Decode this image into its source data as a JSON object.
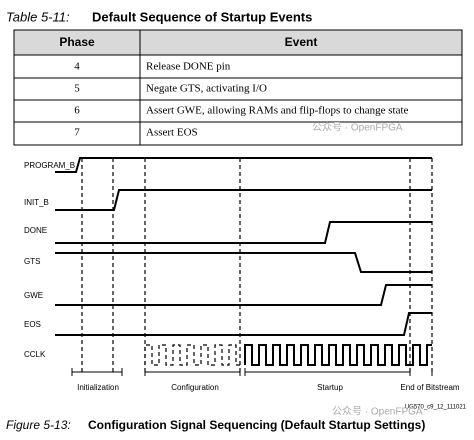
{
  "table": {
    "label": "Table 5-11:",
    "title": "Default Sequence of Startup Events",
    "headers": [
      "Phase",
      "Event"
    ],
    "rows": [
      [
        "4",
        "Release DONE pin"
      ],
      [
        "5",
        "Negate GTS, activating I/O"
      ],
      [
        "6",
        "Assert GWE, allowing RAMs and flip-flops to change state"
      ],
      [
        "7",
        "Assert EOS"
      ]
    ]
  },
  "watermark": "公众号 · OpenFPGA",
  "figure": {
    "signals": [
      "PROGRAM_B",
      "INIT_B",
      "DONE",
      "GTS",
      "GWE",
      "EOS",
      "CCLK"
    ],
    "phases": [
      "Initialization",
      "Configuration",
      "Startup",
      "End of Bitstream"
    ],
    "id": "UG570_c9_12_111021",
    "label": "Figure 5-13:",
    "title": "Configuration Signal Sequencing (Default Startup Settings)"
  }
}
